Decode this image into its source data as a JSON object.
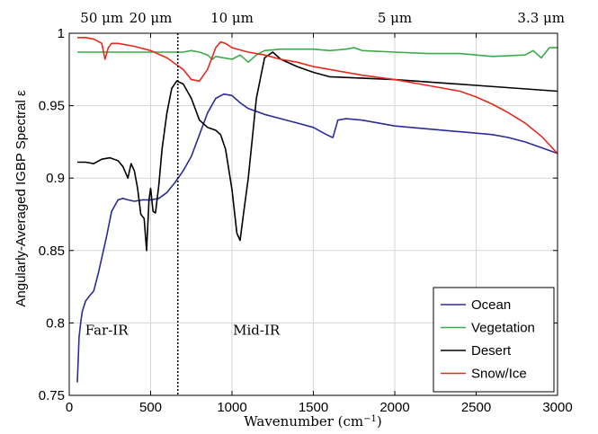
{
  "chart_data": {
    "type": "line",
    "xlabel": "Wavenumber (cm",
    "xlabel_sup": "−1",
    "xlabel_close": ")",
    "ylabel": "Angularly-Averaged IGBP Spectral ε",
    "xlim": [
      0,
      3000
    ],
    "ylim": [
      0.75,
      1.0
    ],
    "x_ticks": [
      0,
      500,
      1000,
      1500,
      2000,
      2500,
      3000
    ],
    "y_ticks": [
      0.75,
      0.8,
      0.85,
      0.9,
      0.95,
      1.0
    ],
    "x_tick_labels": [
      "0",
      "500",
      "1000",
      "1500",
      "2000",
      "2500",
      "3000"
    ],
    "y_tick_labels": [
      "0.75",
      "0.8",
      "0.85",
      "0.9",
      "0.95",
      "1"
    ],
    "grid": true,
    "legend_position": "bottom-right",
    "top_axis": [
      {
        "label": "50 μm",
        "x": 200
      },
      {
        "label": "20 μm",
        "x": 500
      },
      {
        "label": "10 μm",
        "x": 1000
      },
      {
        "label": "5 μm",
        "x": 2000
      },
      {
        "label": "3.3 μm",
        "x": 3000
      }
    ],
    "vline": {
      "x": 667,
      "style": "dotted"
    },
    "annotations": [
      {
        "text": "Far-IR",
        "x": 230,
        "y": 0.795
      },
      {
        "text": "Mid-IR",
        "x": 1150,
        "y": 0.795
      }
    ],
    "series": [
      {
        "name": "Ocean",
        "color": "#2b2b9a",
        "x": [
          50,
          55,
          60,
          70,
          80,
          100,
          120,
          150,
          180,
          200,
          230,
          260,
          300,
          330,
          360,
          400,
          450,
          500,
          550,
          600,
          650,
          700,
          750,
          800,
          850,
          900,
          950,
          1000,
          1050,
          1100,
          1200,
          1300,
          1400,
          1500,
          1580,
          1620,
          1650,
          1700,
          1800,
          2000,
          2200,
          2400,
          2600,
          2700,
          2800,
          2900,
          3000
        ],
        "y": [
          0.759,
          0.775,
          0.79,
          0.8,
          0.808,
          0.815,
          0.818,
          0.822,
          0.835,
          0.845,
          0.86,
          0.877,
          0.885,
          0.886,
          0.885,
          0.884,
          0.885,
          0.885,
          0.886,
          0.89,
          0.897,
          0.905,
          0.915,
          0.93,
          0.945,
          0.955,
          0.958,
          0.957,
          0.952,
          0.948,
          0.944,
          0.941,
          0.938,
          0.935,
          0.93,
          0.928,
          0.94,
          0.941,
          0.94,
          0.936,
          0.934,
          0.932,
          0.93,
          0.928,
          0.925,
          0.921,
          0.917
        ]
      },
      {
        "name": "Vegetation",
        "color": "#3aaa4a",
        "x": [
          50,
          100,
          200,
          300,
          400,
          500,
          600,
          700,
          750,
          800,
          850,
          880,
          900,
          950,
          1000,
          1050,
          1100,
          1150,
          1200,
          1300,
          1400,
          1500,
          1600,
          1700,
          1750,
          1800,
          2000,
          2200,
          2400,
          2600,
          2800,
          2850,
          2900,
          2950,
          3000
        ],
        "y": [
          0.987,
          0.987,
          0.987,
          0.987,
          0.987,
          0.987,
          0.987,
          0.987,
          0.988,
          0.987,
          0.985,
          0.982,
          0.984,
          0.983,
          0.982,
          0.985,
          0.98,
          0.985,
          0.988,
          0.989,
          0.989,
          0.989,
          0.988,
          0.989,
          0.99,
          0.988,
          0.987,
          0.986,
          0.986,
          0.984,
          0.985,
          0.988,
          0.983,
          0.99,
          0.99
        ]
      },
      {
        "name": "Desert",
        "color": "#000000",
        "x": [
          50,
          100,
          150,
          200,
          250,
          300,
          330,
          360,
          380,
          400,
          420,
          440,
          460,
          475,
          490,
          500,
          515,
          530,
          550,
          570,
          600,
          630,
          660,
          700,
          750,
          800,
          850,
          900,
          930,
          960,
          1000,
          1030,
          1050,
          1070,
          1100,
          1150,
          1200,
          1250,
          1300,
          1400,
          1500,
          1600,
          2000,
          2500,
          3000
        ],
        "y": [
          0.911,
          0.911,
          0.91,
          0.913,
          0.914,
          0.912,
          0.908,
          0.9,
          0.91,
          0.905,
          0.893,
          0.875,
          0.872,
          0.85,
          0.885,
          0.893,
          0.877,
          0.876,
          0.895,
          0.92,
          0.945,
          0.962,
          0.967,
          0.965,
          0.955,
          0.94,
          0.935,
          0.933,
          0.93,
          0.92,
          0.892,
          0.862,
          0.857,
          0.875,
          0.9,
          0.955,
          0.983,
          0.987,
          0.982,
          0.977,
          0.973,
          0.97,
          0.968,
          0.964,
          0.96
        ]
      },
      {
        "name": "Snow/Ice",
        "color": "#e8291c",
        "x": [
          50,
          100,
          150,
          200,
          220,
          240,
          260,
          300,
          400,
          500,
          600,
          650,
          700,
          750,
          800,
          850,
          900,
          930,
          960,
          1000,
          1100,
          1200,
          1300,
          1400,
          1500,
          1600,
          1800,
          2000,
          2200,
          2400,
          2500,
          2600,
          2700,
          2800,
          2900,
          3000
        ],
        "y": [
          0.997,
          0.997,
          0.996,
          0.993,
          0.982,
          0.99,
          0.993,
          0.993,
          0.991,
          0.988,
          0.983,
          0.979,
          0.975,
          0.968,
          0.967,
          0.975,
          0.99,
          0.994,
          0.993,
          0.99,
          0.987,
          0.985,
          0.982,
          0.98,
          0.977,
          0.975,
          0.971,
          0.968,
          0.964,
          0.96,
          0.956,
          0.951,
          0.945,
          0.938,
          0.929,
          0.917
        ]
      }
    ]
  }
}
